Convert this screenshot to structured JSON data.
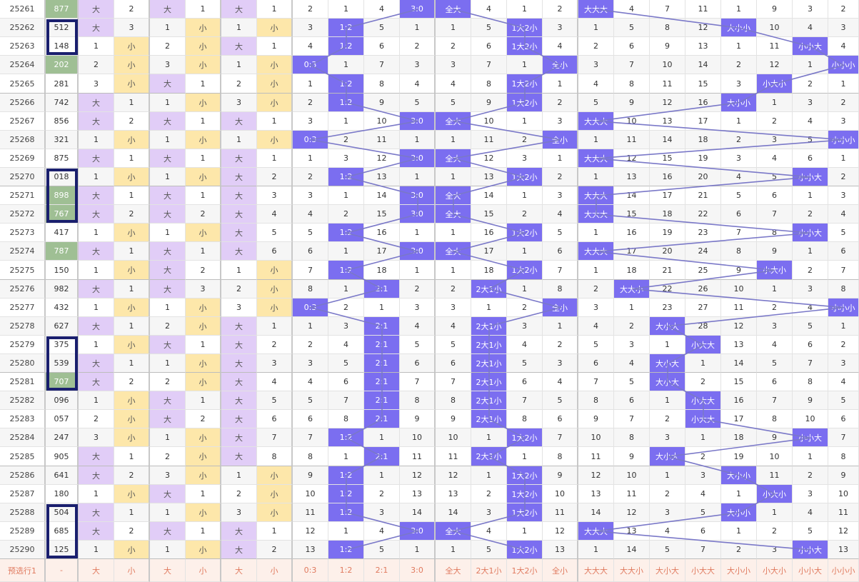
{
  "table": {
    "footer": [
      "预选行1",
      "-",
      "大",
      "小",
      "大",
      "小",
      "大",
      "小",
      "0:3",
      "1:2",
      "2:1",
      "3:0",
      "全大",
      "2大1小",
      "1大2小",
      "全小",
      "大大大",
      "大大小",
      "大小大",
      "小大大",
      "大小小",
      "小大小",
      "小小大",
      "小小小"
    ],
    "rows": [
      [
        "25261",
        "877",
        "大",
        "2",
        "大",
        "1",
        "大",
        "1",
        "2",
        "1",
        "4",
        "3:0",
        "全大",
        "4",
        "1",
        "2",
        "大大大",
        "4",
        "7",
        "11",
        "1",
        "9",
        "3",
        "2"
      ],
      [
        "25262",
        "512",
        "大",
        "3",
        "1",
        "小",
        "1",
        "小",
        "3",
        "1:2",
        "5",
        "1",
        "1",
        "5",
        "1大2小",
        "3",
        "1",
        "5",
        "8",
        "12",
        "大小小",
        "10",
        "4",
        "3"
      ],
      [
        "25263",
        "148",
        "1",
        "小",
        "2",
        "小",
        "大",
        "1",
        "4",
        "1:2",
        "6",
        "2",
        "2",
        "6",
        "1大2小",
        "4",
        "2",
        "6",
        "9",
        "13",
        "1",
        "11",
        "小小大",
        "4"
      ],
      [
        "25264",
        "202",
        "2",
        "小",
        "3",
        "小",
        "1",
        "小",
        "0:3",
        "1",
        "7",
        "3",
        "3",
        "7",
        "1",
        "全小",
        "3",
        "7",
        "10",
        "14",
        "2",
        "12",
        "1",
        "小小小"
      ],
      [
        "25265",
        "281",
        "3",
        "小",
        "大",
        "1",
        "2",
        "小",
        "1",
        "1:2",
        "8",
        "4",
        "4",
        "8",
        "1大2小",
        "1",
        "4",
        "8",
        "11",
        "15",
        "3",
        "小大小",
        "2",
        "1"
      ],
      [
        "25266",
        "742",
        "大",
        "1",
        "1",
        "小",
        "3",
        "小",
        "2",
        "1:2",
        "9",
        "5",
        "5",
        "9",
        "1大2小",
        "2",
        "5",
        "9",
        "12",
        "16",
        "大小小",
        "1",
        "3",
        "2"
      ],
      [
        "25267",
        "856",
        "大",
        "2",
        "大",
        "1",
        "大",
        "1",
        "3",
        "1",
        "10",
        "3:0",
        "全大",
        "10",
        "1",
        "3",
        "大大大",
        "10",
        "13",
        "17",
        "1",
        "2",
        "4",
        "3"
      ],
      [
        "25268",
        "321",
        "1",
        "小",
        "1",
        "小",
        "1",
        "小",
        "0:3",
        "2",
        "11",
        "1",
        "1",
        "11",
        "2",
        "全小",
        "1",
        "11",
        "14",
        "18",
        "2",
        "3",
        "5",
        "小小小"
      ],
      [
        "25269",
        "875",
        "大",
        "1",
        "大",
        "1",
        "大",
        "1",
        "1",
        "3",
        "12",
        "3:0",
        "全大",
        "12",
        "3",
        "1",
        "大大大",
        "12",
        "15",
        "19",
        "3",
        "4",
        "6",
        "1"
      ],
      [
        "25270",
        "018",
        "1",
        "小",
        "1",
        "小",
        "大",
        "2",
        "2",
        "1:2",
        "13",
        "1",
        "1",
        "13",
        "1大2小",
        "2",
        "1",
        "13",
        "16",
        "20",
        "4",
        "5",
        "小小大",
        "2"
      ],
      [
        "25271",
        "898",
        "大",
        "1",
        "大",
        "1",
        "大",
        "3",
        "3",
        "1",
        "14",
        "3:0",
        "全大",
        "14",
        "1",
        "3",
        "大大大",
        "14",
        "17",
        "21",
        "5",
        "6",
        "1",
        "3"
      ],
      [
        "25272",
        "767",
        "大",
        "2",
        "大",
        "2",
        "大",
        "4",
        "4",
        "2",
        "15",
        "3:0",
        "全大",
        "15",
        "2",
        "4",
        "大大大",
        "15",
        "18",
        "22",
        "6",
        "7",
        "2",
        "4"
      ],
      [
        "25273",
        "417",
        "1",
        "小",
        "1",
        "小",
        "大",
        "5",
        "5",
        "1:2",
        "16",
        "1",
        "1",
        "16",
        "1大2小",
        "5",
        "1",
        "16",
        "19",
        "23",
        "7",
        "8",
        "小小大",
        "5"
      ],
      [
        "25274",
        "787",
        "大",
        "1",
        "大",
        "1",
        "大",
        "6",
        "6",
        "1",
        "17",
        "3:0",
        "全大",
        "17",
        "1",
        "6",
        "大大大",
        "17",
        "20",
        "24",
        "8",
        "9",
        "1",
        "6"
      ],
      [
        "25275",
        "150",
        "1",
        "小",
        "大",
        "2",
        "1",
        "小",
        "7",
        "1:2",
        "18",
        "1",
        "1",
        "18",
        "1大2小",
        "7",
        "1",
        "18",
        "21",
        "25",
        "9",
        "小大小",
        "2",
        "7"
      ],
      [
        "25276",
        "982",
        "大",
        "1",
        "大",
        "3",
        "2",
        "小",
        "8",
        "1",
        "2:1",
        "2",
        "2",
        "2大1小",
        "1",
        "8",
        "2",
        "大大小",
        "22",
        "26",
        "10",
        "1",
        "3",
        "8"
      ],
      [
        "25277",
        "432",
        "1",
        "小",
        "1",
        "小",
        "3",
        "小",
        "0:3",
        "2",
        "1",
        "3",
        "3",
        "1",
        "2",
        "全小",
        "3",
        "1",
        "23",
        "27",
        "11",
        "2",
        "4",
        "小小小"
      ],
      [
        "25278",
        "627",
        "大",
        "1",
        "2",
        "小",
        "大",
        "1",
        "1",
        "3",
        "2:1",
        "4",
        "4",
        "2大1小",
        "3",
        "1",
        "4",
        "2",
        "大小大",
        "28",
        "12",
        "3",
        "5",
        "1"
      ],
      [
        "25279",
        "375",
        "1",
        "小",
        "大",
        "1",
        "大",
        "2",
        "2",
        "4",
        "2:1",
        "5",
        "5",
        "2大1小",
        "4",
        "2",
        "5",
        "3",
        "1",
        "小大大",
        "13",
        "4",
        "6",
        "2"
      ],
      [
        "25280",
        "539",
        "大",
        "1",
        "1",
        "小",
        "大",
        "3",
        "3",
        "5",
        "2:1",
        "6",
        "6",
        "2大1小",
        "5",
        "3",
        "6",
        "4",
        "大小大",
        "1",
        "14",
        "5",
        "7",
        "3"
      ],
      [
        "25281",
        "707",
        "大",
        "2",
        "2",
        "小",
        "大",
        "4",
        "4",
        "6",
        "2:1",
        "7",
        "7",
        "2大1小",
        "6",
        "4",
        "7",
        "5",
        "大小大",
        "2",
        "15",
        "6",
        "8",
        "4"
      ],
      [
        "25282",
        "096",
        "1",
        "小",
        "大",
        "1",
        "大",
        "5",
        "5",
        "7",
        "2:1",
        "8",
        "8",
        "2大1小",
        "7",
        "5",
        "8",
        "6",
        "1",
        "小大大",
        "16",
        "7",
        "9",
        "5"
      ],
      [
        "25283",
        "057",
        "2",
        "小",
        "大",
        "2",
        "大",
        "6",
        "6",
        "8",
        "2:1",
        "9",
        "9",
        "2大1小",
        "8",
        "6",
        "9",
        "7",
        "2",
        "小大大",
        "17",
        "8",
        "10",
        "6"
      ],
      [
        "25284",
        "247",
        "3",
        "小",
        "1",
        "小",
        "大",
        "7",
        "7",
        "1:2",
        "1",
        "10",
        "10",
        "1",
        "1大2小",
        "7",
        "10",
        "8",
        "3",
        "1",
        "18",
        "9",
        "小小大",
        "7"
      ],
      [
        "25285",
        "905",
        "大",
        "1",
        "2",
        "小",
        "大",
        "8",
        "8",
        "1",
        "2:1",
        "11",
        "11",
        "2大1小",
        "1",
        "8",
        "11",
        "9",
        "大小大",
        "2",
        "19",
        "10",
        "1",
        "8"
      ],
      [
        "25286",
        "641",
        "大",
        "2",
        "3",
        "小",
        "1",
        "小",
        "9",
        "1:2",
        "1",
        "12",
        "12",
        "1",
        "1大2小",
        "9",
        "12",
        "10",
        "1",
        "3",
        "大小小",
        "11",
        "2",
        "9"
      ],
      [
        "25287",
        "180",
        "1",
        "小",
        "大",
        "1",
        "2",
        "小",
        "10",
        "1:2",
        "2",
        "13",
        "13",
        "2",
        "1大2小",
        "10",
        "13",
        "11",
        "2",
        "4",
        "1",
        "小大小",
        "3",
        "10"
      ],
      [
        "25288",
        "504",
        "大",
        "1",
        "1",
        "小",
        "3",
        "小",
        "11",
        "1:2",
        "3",
        "14",
        "14",
        "3",
        "1大2小",
        "11",
        "14",
        "12",
        "3",
        "5",
        "大小小",
        "1",
        "4",
        "11"
      ],
      [
        "25289",
        "685",
        "大",
        "2",
        "大",
        "1",
        "大",
        "1",
        "12",
        "1",
        "4",
        "3:0",
        "全大",
        "4",
        "1",
        "12",
        "大大大",
        "13",
        "4",
        "6",
        "1",
        "2",
        "5",
        "12"
      ],
      [
        "25290",
        "125",
        "1",
        "小",
        "1",
        "小",
        "大",
        "2",
        "13",
        "1:2",
        "5",
        "1",
        "1",
        "5",
        "1大2小",
        "13",
        "1",
        "14",
        "5",
        "7",
        "2",
        "3",
        "小小大",
        "13"
      ]
    ],
    "green_rows": [
      0,
      3,
      10,
      11,
      13,
      20
    ],
    "colors": {
      "purple": "#e1cdf7",
      "yellow": "#fde7aa",
      "green": "#9fbf94",
      "hit": "#7b6ef0",
      "frame": "#1a1f6e",
      "line": "#7a78c8",
      "footer_text": "#e07a5f"
    }
  }
}
